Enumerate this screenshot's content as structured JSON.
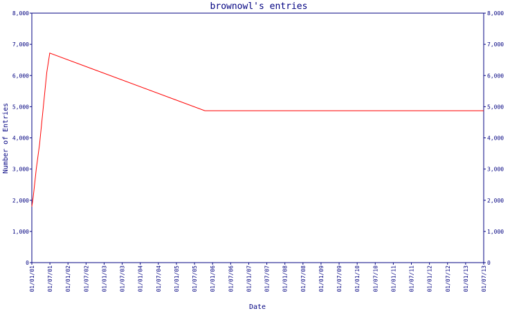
{
  "chart_data": {
    "type": "line",
    "title": "brownowl's entries",
    "xlabel": "Date",
    "ylabel": "Number of Entries",
    "ylim": [
      0,
      8000
    ],
    "yticks": [
      0,
      1000,
      2000,
      3000,
      4000,
      5000,
      6000,
      7000,
      8000
    ],
    "ytick_labels": [
      "0",
      "1,000",
      "2,000",
      "3,000",
      "4,000",
      "5,000",
      "6,000",
      "7,000",
      "8,000"
    ],
    "xticks": [
      "01/01/01",
      "01/07/01",
      "01/01/02",
      "01/07/02",
      "01/01/03",
      "01/07/03",
      "01/01/04",
      "01/07/04",
      "01/01/05",
      "01/07/05",
      "01/01/06",
      "01/07/06",
      "01/01/07",
      "01/07/07",
      "01/01/08",
      "01/07/08",
      "01/01/09",
      "01/07/09",
      "01/01/10",
      "01/07/10",
      "01/01/11",
      "01/07/11",
      "01/01/12",
      "01/07/12",
      "01/01/13",
      "01/07/13"
    ],
    "grid": false,
    "right_axis": true,
    "series": [
      {
        "color": "#ff0000",
        "points": [
          {
            "x": "2001-01-01",
            "y": 1800
          },
          {
            "x": "2001-01-15",
            "y": 2100
          },
          {
            "x": "2001-02-15",
            "y": 3000
          },
          {
            "x": "2001-03-20",
            "y": 3800
          },
          {
            "x": "2001-06-01",
            "y": 6100
          },
          {
            "x": "2001-07-01",
            "y": 6720
          },
          {
            "x": "2005-10-15",
            "y": 4870
          },
          {
            "x": "2013-07-01",
            "y": 4870
          }
        ]
      }
    ]
  }
}
